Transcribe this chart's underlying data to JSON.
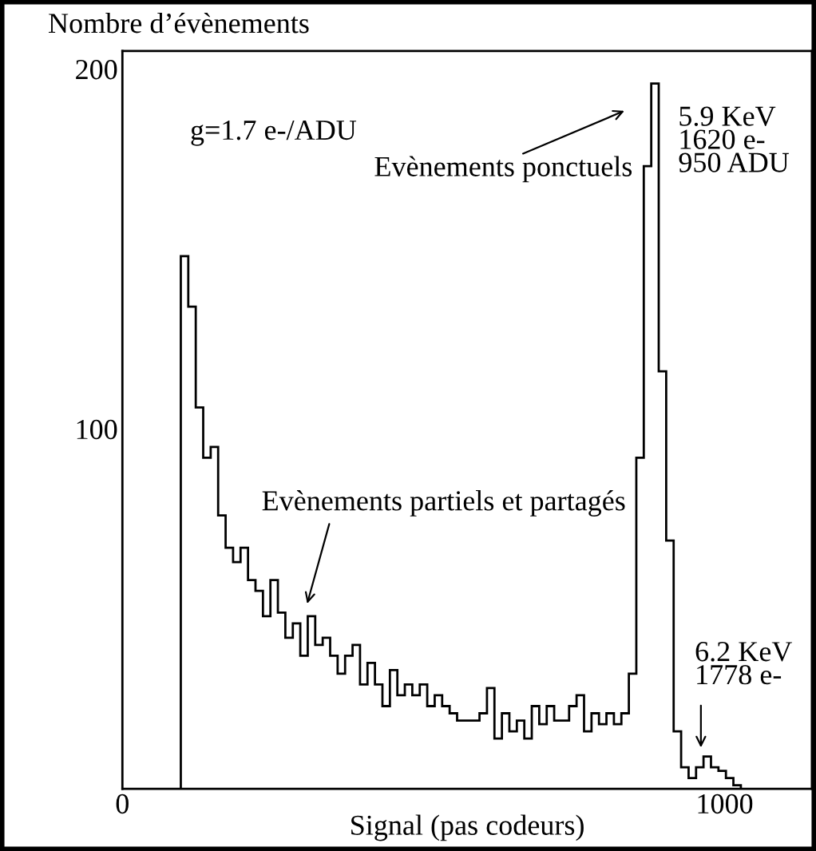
{
  "chart_data": {
    "type": "histogram",
    "xlabel": "Signal (pas codeurs)",
    "ylabel": "Nombre d’évènements",
    "bins": [
      97,
      109.4,
      121.8,
      134.2,
      146.6,
      159,
      171.4,
      183.8,
      196.2,
      208.6,
      221,
      233.4,
      245.8,
      258.2,
      270.6,
      283,
      295.4,
      307.8,
      320.2,
      332.6,
      345,
      357.4,
      369.8,
      382.2,
      394.6,
      407,
      419.4,
      431.8,
      444.2,
      456.6,
      469,
      481.4,
      493.8,
      506.2,
      518.6,
      531,
      543.4,
      555.8,
      568.2,
      580.6,
      593,
      605.4,
      617.8,
      630.2,
      642.6,
      655,
      667.4,
      679.8,
      692.2,
      704.6,
      717,
      729.4,
      741.8,
      754.2,
      766.6,
      779,
      791.4,
      803.8,
      816.2,
      828.6,
      841,
      853.4,
      865.8,
      878.2,
      890.6,
      903,
      915.4,
      927.8,
      940.2,
      952.6,
      965,
      977.4,
      989.8,
      1002.2,
      1014.6,
      1027
    ],
    "values": [
      148,
      134,
      106,
      92,
      95,
      76,
      67,
      63,
      67,
      58,
      55,
      48,
      58,
      49,
      42,
      46,
      37,
      48,
      40,
      42,
      37,
      32,
      37,
      40,
      29,
      35,
      29,
      23,
      33,
      26,
      29,
      26,
      29,
      23,
      26,
      23,
      21,
      19,
      19,
      19,
      21,
      28,
      14,
      21,
      16,
      19,
      14,
      23,
      18,
      23,
      19,
      19,
      23,
      26,
      16,
      21,
      18,
      21,
      18,
      21,
      32,
      92,
      173,
      196,
      116,
      69,
      16,
      6,
      3,
      6,
      9,
      6,
      5,
      3,
      1
    ],
    "color": "#000000",
    "xlim": [
      0,
      1145
    ],
    "ylim": [
      0,
      205
    ],
    "xticks": [
      0,
      1000
    ],
    "yticks": [
      100,
      200
    ],
    "grid": false,
    "legend": false,
    "annotations": [
      "g=1.7 e-/ADU",
      "5.9 KeV\n1620 e-\n950 ADU",
      "Evènements ponctuels",
      "Evènements partiels et partagés",
      "6.2 KeV\n1778 e-"
    ]
  }
}
